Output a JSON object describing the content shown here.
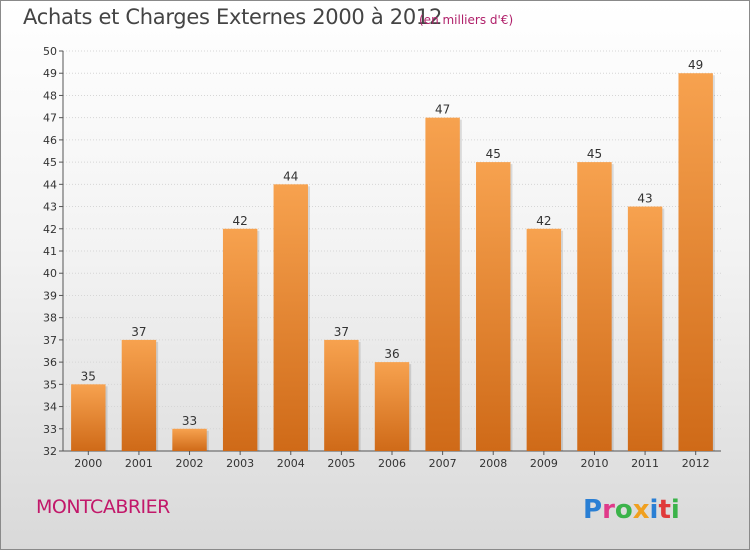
{
  "header": {
    "title": "Achats et Charges Externes 2000 à 2012",
    "unit": "(en milliers d'€)"
  },
  "footer": {
    "city": "MONTCABRIER",
    "brand": "Proxiti"
  },
  "colors": {
    "bar_top": "#f7a24f",
    "bar_bottom": "#cf6a18",
    "city_text": "#c2186a",
    "unit_text": "#b0206a"
  },
  "chart_data": {
    "type": "bar",
    "title": "Achats et Charges Externes 2000 à 2012",
    "subtitle": "(en milliers d'€)",
    "xlabel": "",
    "ylabel": "",
    "categories": [
      "2000",
      "2001",
      "2002",
      "2003",
      "2004",
      "2005",
      "2006",
      "2007",
      "2008",
      "2009",
      "2010",
      "2011",
      "2012"
    ],
    "values": [
      35,
      37,
      33,
      42,
      44,
      37,
      36,
      47,
      45,
      42,
      45,
      43,
      49
    ],
    "ylim": [
      32,
      50
    ],
    "yticks": [
      32,
      33,
      34,
      35,
      36,
      37,
      38,
      39,
      40,
      41,
      42,
      43,
      44,
      45,
      46,
      47,
      48,
      49,
      50
    ],
    "grid": true,
    "legend": "none"
  }
}
